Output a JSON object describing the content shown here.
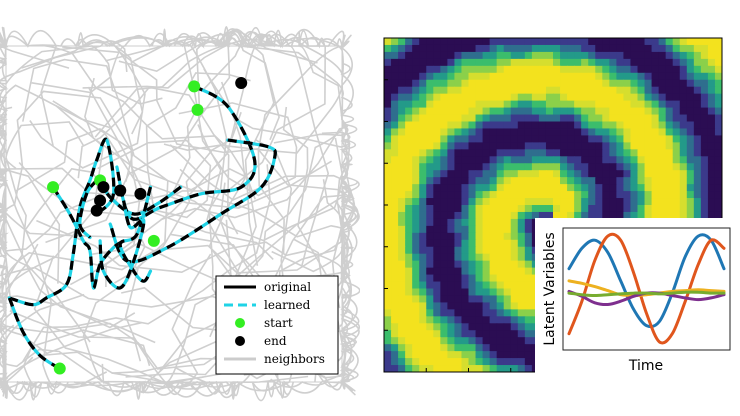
{
  "chart_data": [
    {
      "type": "line",
      "title": "",
      "xlabel": "",
      "ylabel": "",
      "grid": false,
      "legend_position": "bottom-right",
      "legend": [
        {
          "label": "original",
          "style": "solid",
          "color": "#000000"
        },
        {
          "label": "learned",
          "style": "dashed",
          "color": "#1fd3e6"
        },
        {
          "label": "start",
          "style": "marker",
          "color": "#33ee22"
        },
        {
          "label": "end",
          "style": "marker",
          "color": "#000000"
        },
        {
          "label": "neighbors",
          "style": "solid",
          "color": "#cccccc"
        }
      ],
      "xlim": [
        0,
        1
      ],
      "ylim": [
        0,
        1
      ],
      "series": [
        {
          "x": [
            0.52,
            0.45,
            0.38,
            0.31,
            0.28
          ],
          "y": [
            0.58,
            0.53,
            0.5,
            0.55,
            0.6
          ]
        },
        {
          "x": [
            0.56,
            0.66,
            0.74,
            0.7,
            0.58,
            0.46,
            0.37,
            0.33
          ],
          "y": [
            0.88,
            0.82,
            0.66,
            0.58,
            0.56,
            0.52,
            0.49,
            0.64
          ]
        },
        {
          "x": [
            0.66,
            0.78,
            0.8,
            0.76,
            0.64,
            0.48,
            0.36,
            0.31
          ],
          "y": [
            0.72,
            0.7,
            0.67,
            0.58,
            0.5,
            0.4,
            0.36,
            0.47
          ]
        },
        {
          "x": [
            0.14,
            0.19,
            0.23,
            0.25,
            0.26,
            0.28,
            0.32,
            0.35
          ],
          "y": [
            0.58,
            0.5,
            0.42,
            0.39,
            0.28,
            0.35,
            0.4,
            0.42
          ]
        },
        {
          "x": [
            0.01,
            0.08,
            0.12,
            0.18,
            0.2,
            0.22,
            0.25,
            0.27,
            0.3,
            0.32,
            0.27
          ],
          "y": [
            0.25,
            0.23,
            0.25,
            0.29,
            0.38,
            0.52,
            0.6,
            0.66,
            0.72,
            0.56,
            0.5
          ]
        },
        {
          "x": [
            0.01,
            0.05,
            0.1,
            0.16
          ],
          "y": [
            0.25,
            0.15,
            0.08,
            0.04
          ]
        },
        {
          "x": [
            0.43,
            0.39,
            0.34,
            0.38,
            0.41,
            0.43
          ],
          "y": [
            0.58,
            0.44,
            0.41,
            0.33,
            0.3,
            0.33
          ]
        },
        {
          "x": [
            0.35,
            0.37,
            0.41,
            0.38,
            0.34,
            0.29,
            0.28
          ],
          "y": [
            0.54,
            0.46,
            0.48,
            0.36,
            0.28,
            0.33,
            0.42
          ]
        },
        {
          "x": [
            0.27,
            0.24,
            0.22,
            0.25
          ],
          "y": [
            0.6,
            0.56,
            0.47,
            0.43
          ]
        }
      ],
      "start_points": [
        {
          "x": 0.56,
          "y": 0.88
        },
        {
          "x": 0.57,
          "y": 0.81
        },
        {
          "x": 0.14,
          "y": 0.58
        },
        {
          "x": 0.28,
          "y": 0.6
        },
        {
          "x": 0.44,
          "y": 0.42
        },
        {
          "x": 0.16,
          "y": 0.04
        }
      ],
      "end_points": [
        {
          "x": 0.7,
          "y": 0.89
        },
        {
          "x": 0.28,
          "y": 0.54
        },
        {
          "x": 0.34,
          "y": 0.57
        },
        {
          "x": 0.4,
          "y": 0.56
        },
        {
          "x": 0.27,
          "y": 0.51
        },
        {
          "x": 0.29,
          "y": 0.58
        }
      ]
    },
    {
      "type": "heatmap",
      "title": "",
      "xlabel": "",
      "ylabel": "",
      "pattern": "spiral wave",
      "colormap": [
        "#2b0d53",
        "#3b3a8b",
        "#2f6e8e",
        "#239a89",
        "#3bbd6c",
        "#8bd04a",
        "#d6de2e",
        "#f3e21e"
      ]
    },
    {
      "type": "line",
      "title": "",
      "xlabel": "Time",
      "ylabel": "Latent Variables",
      "grid": false,
      "series": [
        {
          "color": "#1f77b4",
          "values": [
            0.6,
            0.85,
            0.95,
            0.8,
            0.45,
            0.1,
            -0.1,
            -0.05,
            0.3,
            0.75,
            1.0,
            0.95,
            0.6
          ]
        },
        {
          "color": "#e0561d",
          "values": [
            -0.2,
            0.2,
            0.7,
            1.0,
            0.95,
            0.55,
            0.05,
            -0.3,
            -0.2,
            0.2,
            0.65,
            0.95,
            0.85
          ]
        },
        {
          "color": "#edb120",
          "values": [
            0.45,
            0.42,
            0.38,
            0.33,
            0.28,
            0.27,
            0.28,
            0.3,
            0.32,
            0.33,
            0.34,
            0.33,
            0.32
          ]
        },
        {
          "color": "#7e2f8e",
          "values": [
            0.32,
            0.26,
            0.18,
            0.16,
            0.2,
            0.26,
            0.3,
            0.3,
            0.27,
            0.24,
            0.22,
            0.24,
            0.28
          ]
        },
        {
          "color": "#77ac30",
          "values": [
            0.3,
            0.28,
            0.27,
            0.28,
            0.29,
            0.3,
            0.3,
            0.29,
            0.3,
            0.31,
            0.31,
            0.3,
            0.3
          ]
        }
      ]
    }
  ]
}
